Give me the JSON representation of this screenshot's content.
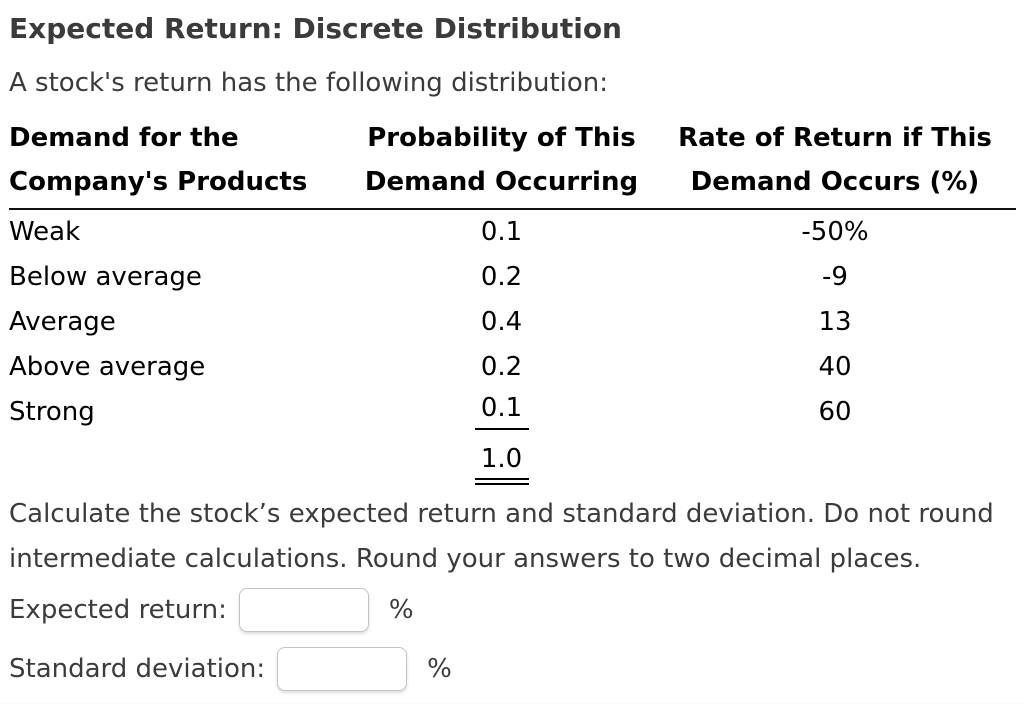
{
  "page": {
    "title": "Expected Return: Discrete Distribution",
    "intro": "A stock's return has the following distribution:",
    "instructions": "Calculate the stock’s expected return and standard deviation. Do not round intermediate calculations. Round your answers to two decimal places."
  },
  "table": {
    "headers": {
      "demand": {
        "line1": "Demand for the",
        "line2": "Company's Products"
      },
      "probability": {
        "line1": "Probability of This",
        "line2": "Demand Occurring"
      },
      "rate": {
        "line1": "Rate of Return if This",
        "line2": "Demand Occurs (%)"
      }
    },
    "rows": [
      {
        "demand": "Weak",
        "probability": "0.1",
        "rate": "-50%"
      },
      {
        "demand": "Below average",
        "probability": "0.2",
        "rate": "-9"
      },
      {
        "demand": "Average",
        "probability": "0.4",
        "rate": "13"
      },
      {
        "demand": "Above average",
        "probability": "0.2",
        "rate": "40"
      },
      {
        "demand": "Strong",
        "probability": "0.1",
        "rate": "60"
      }
    ],
    "total_probability": "1.0"
  },
  "answers": {
    "expected_return": {
      "label": "Expected return:",
      "value": "",
      "suffix": "%"
    },
    "standard_deviation": {
      "label": "Standard deviation:",
      "value": "",
      "suffix": "%"
    }
  }
}
